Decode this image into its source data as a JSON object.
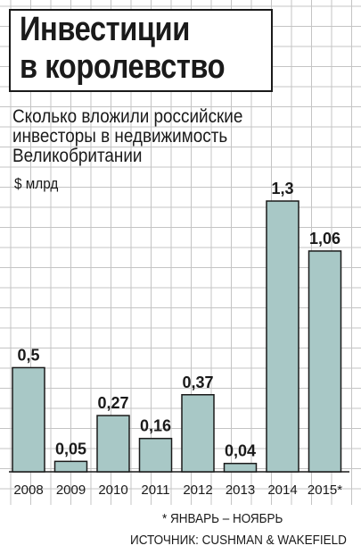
{
  "title": [
    "Инвестиции",
    "в королевство"
  ],
  "subtitle": [
    "Сколько вложили российские",
    "инвесторы в недвижимость",
    "Великобритании"
  ],
  "unit": "$ млрд",
  "footnote": "* ЯНВАРЬ – НОЯБРЬ",
  "source": "ИСТОЧНИК: CUSHMAN & WAKEFIELD",
  "colors": {
    "bar": "#a8c8c6",
    "grid": "#c4c4c4",
    "text": "#1a1a1a",
    "background": "#ffffff"
  },
  "chart_data": {
    "type": "bar",
    "categories": [
      "2008",
      "2009",
      "2010",
      "2011",
      "2012",
      "2013",
      "2014",
      "2015*"
    ],
    "values": [
      0.5,
      0.05,
      0.27,
      0.16,
      0.37,
      0.04,
      1.3,
      1.06
    ],
    "value_labels": [
      "0,5",
      "0,05",
      "0,27",
      "0,16",
      "0,37",
      "0,04",
      "1,3",
      "1,06"
    ],
    "ylim": [
      0,
      1.3
    ],
    "grid": true
  }
}
